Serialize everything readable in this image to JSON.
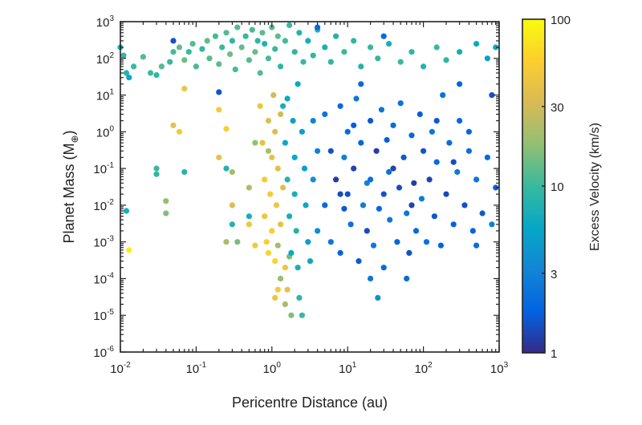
{
  "chart_data": {
    "type": "scatter",
    "xlabel": "Pericentre Distance (au)",
    "ylabel": {
      "main": "Planet Mass (M",
      "sub": "⊕",
      "close": ")"
    },
    "xscale": "log",
    "yscale": "log",
    "xlim": [
      0.01,
      1000
    ],
    "ylim": [
      1e-06,
      1000
    ],
    "grid": false,
    "x_tick_base": "10",
    "x_tick_exponents": [
      "-2",
      "-1",
      "0",
      "1",
      "2",
      "3"
    ],
    "y_tick_base": "10",
    "y_tick_exponents": [
      "3",
      "2",
      "1",
      "0",
      "-1",
      "-2",
      "-3",
      "-4",
      "-5",
      "-6"
    ],
    "colorbar": {
      "label": "Excess Velocity (km/s)",
      "scale": "log",
      "range": [
        1,
        100
      ],
      "colormap": "parula",
      "ticks": [
        "1",
        "3",
        "10",
        "30",
        "100"
      ],
      "tick_values": [
        1,
        3,
        10,
        30,
        100
      ],
      "colors": [
        "#352a87",
        "#0363e1",
        "#1485d4",
        "#06a7c6",
        "#38b99e",
        "#92bf73",
        "#d9ba56",
        "#fcce2e",
        "#f9fb0e"
      ]
    },
    "point_fields": [
      "pericentre_au",
      "mass_earth",
      "excess_velocity_kms"
    ],
    "points": [
      [
        0.011,
        120,
        9
      ],
      [
        0.012,
        40,
        8
      ],
      [
        0.015,
        60,
        10
      ],
      [
        0.02,
        110,
        12
      ],
      [
        0.025,
        40,
        10
      ],
      [
        0.03,
        35,
        9
      ],
      [
        0.035,
        60,
        12
      ],
      [
        0.045,
        80,
        10
      ],
      [
        0.05,
        150,
        11
      ],
      [
        0.06,
        200,
        13
      ],
      [
        0.07,
        90,
        14
      ],
      [
        0.08,
        150,
        10
      ],
      [
        0.09,
        250,
        12
      ],
      [
        0.1,
        60,
        11
      ],
      [
        0.12,
        180,
        9
      ],
      [
        0.14,
        300,
        13
      ],
      [
        0.15,
        100,
        12
      ],
      [
        0.18,
        400,
        11
      ],
      [
        0.2,
        70,
        13
      ],
      [
        0.22,
        200,
        10
      ],
      [
        0.25,
        500,
        12
      ],
      [
        0.28,
        130,
        14
      ],
      [
        0.3,
        300,
        9
      ],
      [
        0.33,
        50,
        11
      ],
      [
        0.35,
        700,
        12
      ],
      [
        0.4,
        200,
        13
      ],
      [
        0.45,
        400,
        10
      ],
      [
        0.5,
        90,
        12
      ],
      [
        0.55,
        600,
        11
      ],
      [
        0.6,
        150,
        14
      ],
      [
        0.65,
        300,
        9
      ],
      [
        0.7,
        40,
        12
      ],
      [
        0.75,
        500,
        13
      ],
      [
        0.8,
        250,
        8
      ],
      [
        0.9,
        100,
        11
      ],
      [
        1.0,
        700,
        12
      ],
      [
        1.1,
        180,
        10
      ],
      [
        1.2,
        400,
        13
      ],
      [
        1.3,
        60,
        9
      ],
      [
        1.5,
        300,
        11
      ],
      [
        1.7,
        800,
        10
      ],
      [
        2,
        150,
        9
      ],
      [
        2.3,
        500,
        8
      ],
      [
        2.6,
        80,
        10
      ],
      [
        3,
        300,
        7
      ],
      [
        3.5,
        120,
        9
      ],
      [
        4,
        600,
        8
      ],
      [
        5,
        200,
        7
      ],
      [
        6,
        80,
        9
      ],
      [
        7,
        400,
        8
      ],
      [
        9,
        150,
        10
      ],
      [
        12,
        300,
        9
      ],
      [
        15,
        60,
        8
      ],
      [
        20,
        200,
        10
      ],
      [
        25,
        100,
        9
      ],
      [
        35,
        250,
        7
      ],
      [
        50,
        80,
        10
      ],
      [
        70,
        150,
        9
      ],
      [
        100,
        60,
        8
      ],
      [
        150,
        200,
        10
      ],
      [
        200,
        90,
        9
      ],
      [
        300,
        150,
        7
      ],
      [
        500,
        250,
        6
      ],
      [
        700,
        100,
        5
      ],
      [
        900,
        200,
        6
      ],
      [
        0.01,
        200,
        7
      ],
      [
        0.013,
        30,
        6
      ],
      [
        0.05,
        300,
        1.5
      ],
      [
        0.2,
        12,
        1.5
      ],
      [
        4,
        700,
        2
      ],
      [
        30,
        400,
        2
      ],
      [
        0.7,
        5,
        45
      ],
      [
        0.75,
        0.5,
        40
      ],
      [
        0.8,
        0.05,
        50
      ],
      [
        0.8,
        0.005,
        45
      ],
      [
        0.85,
        0.001,
        55
      ],
      [
        0.9,
        0.0005,
        60
      ],
      [
        0.9,
        2,
        35
      ],
      [
        0.95,
        0.02,
        50
      ],
      [
        1.0,
        0.2,
        40
      ],
      [
        1.0,
        0.002,
        55
      ],
      [
        1.05,
        10,
        30
      ],
      [
        1.1,
        1,
        35
      ],
      [
        1.1,
        0.0003,
        60
      ],
      [
        1.15,
        0.01,
        45
      ],
      [
        1.2,
        0.1,
        38
      ],
      [
        1.2,
        5e-05,
        50
      ],
      [
        1.3,
        0.003,
        40
      ],
      [
        1.3,
        3,
        30
      ],
      [
        1.4,
        0.03,
        35
      ],
      [
        1.5,
        0.0002,
        45
      ],
      [
        0.2,
        4,
        50
      ],
      [
        0.25,
        1.2,
        55
      ],
      [
        0.05,
        1.5,
        40
      ],
      [
        0.06,
        1,
        50
      ],
      [
        0.013,
        0.0006,
        85
      ],
      [
        0.07,
        15,
        45
      ],
      [
        0.2,
        0.2,
        40
      ],
      [
        0.3,
        0.01,
        35
      ],
      [
        0.5,
        0.003,
        45
      ],
      [
        1.1,
        3e-05,
        45
      ],
      [
        1.6,
        5e-05,
        40
      ],
      [
        0.6,
        0.0008,
        50
      ],
      [
        0.3,
        0.08,
        20
      ],
      [
        0.5,
        0.03,
        22
      ],
      [
        0.6,
        0.5,
        18
      ],
      [
        0.9,
        0.3,
        22
      ],
      [
        1.2,
        0.0008,
        20
      ],
      [
        1.3,
        0.0001,
        18
      ],
      [
        1.5,
        2e-05,
        20
      ],
      [
        1.8,
        1e-05,
        16
      ],
      [
        0.04,
        0.006,
        16
      ],
      [
        0.04,
        0.013,
        18
      ],
      [
        0.35,
        0.001,
        15
      ],
      [
        0.25,
        0.001,
        22
      ],
      [
        1.7,
        0.0004,
        15
      ],
      [
        1.4,
        5,
        7
      ],
      [
        1.5,
        0.5,
        6
      ],
      [
        1.6,
        0.05,
        8
      ],
      [
        1.7,
        0.005,
        7
      ],
      [
        1.8,
        0.0005,
        6
      ],
      [
        1.9,
        2,
        5
      ],
      [
        2,
        0.2,
        6
      ],
      [
        2,
        0.02,
        7
      ],
      [
        2.1,
        0.002,
        8
      ],
      [
        2.2,
        0.0002,
        7
      ],
      [
        2.3,
        3e-05,
        9
      ],
      [
        2.5,
        1e-05,
        10
      ],
      [
        2.5,
        1,
        5
      ],
      [
        2.7,
        0.1,
        5
      ],
      [
        2.8,
        0.01,
        6
      ],
      [
        3,
        0.001,
        5
      ],
      [
        3.2,
        0.0003,
        6
      ],
      [
        1.6,
        8,
        6
      ],
      [
        2.2,
        20,
        6
      ],
      [
        0.03,
        0.1,
        10
      ],
      [
        0.03,
        0.07,
        9
      ],
      [
        0.07,
        0.08,
        8
      ],
      [
        0.012,
        0.007,
        7
      ],
      [
        0.25,
        0.1,
        8
      ],
      [
        0.3,
        0.003,
        8
      ],
      [
        0.5,
        0.005,
        7
      ],
      [
        5,
        3,
        2.5
      ],
      [
        5,
        0.01,
        2
      ],
      [
        6,
        0.3,
        1.5
      ],
      [
        6,
        0.001,
        2.5
      ],
      [
        7,
        0.05,
        1.2
      ],
      [
        8,
        5,
        2
      ],
      [
        8,
        0.0005,
        1.8
      ],
      [
        9,
        0.2,
        3
      ],
      [
        10,
        0.02,
        1.5
      ],
      [
        10,
        1,
        2
      ],
      [
        11,
        0.003,
        2.2
      ],
      [
        12,
        0.1,
        1.3
      ],
      [
        13,
        8,
        2.5
      ],
      [
        14,
        0.0003,
        1.6
      ],
      [
        15,
        0.5,
        1.8
      ],
      [
        16,
        0.01,
        2.8
      ],
      [
        18,
        0.002,
        1.4
      ],
      [
        20,
        2,
        1.6
      ],
      [
        20,
        0.05,
        2.2
      ],
      [
        22,
        0.0008,
        2.5
      ],
      [
        24,
        0.3,
        1.2
      ],
      [
        26,
        0.008,
        1.9
      ],
      [
        28,
        4,
        2.4
      ],
      [
        30,
        0.02,
        1.5
      ],
      [
        30,
        0.0002,
        2
      ],
      [
        33,
        0.6,
        1.7
      ],
      [
        36,
        0.004,
        2.6
      ],
      [
        40,
        0.1,
        1.3
      ],
      [
        40,
        1.5,
        2.1
      ],
      [
        45,
        0.001,
        1.8
      ],
      [
        48,
        0.03,
        1.4
      ],
      [
        50,
        6,
        2.2
      ],
      [
        55,
        0.2,
        1.6
      ],
      [
        60,
        0.006,
        2.4
      ],
      [
        65,
        0.0005,
        1.5
      ],
      [
        70,
        0.8,
        1.9
      ],
      [
        75,
        0.04,
        1.2
      ],
      [
        80,
        0.002,
        2
      ],
      [
        90,
        3,
        1.7
      ],
      [
        95,
        0.015,
        2.7
      ],
      [
        100,
        0.3,
        1.5
      ],
      [
        110,
        0.001,
        2.2
      ],
      [
        120,
        0.05,
        1.3
      ],
      [
        130,
        1,
        2.5
      ],
      [
        140,
        0.005,
        1.6
      ],
      [
        150,
        0.15,
        2
      ],
      [
        170,
        0.0008,
        1.8
      ],
      [
        180,
        10,
        2.3
      ],
      [
        200,
        0.02,
        1.4
      ],
      [
        220,
        0.5,
        2.1
      ],
      [
        250,
        0.003,
        1.7
      ],
      [
        280,
        0.08,
        2.6
      ],
      [
        300,
        2,
        1.9
      ],
      [
        350,
        0.01,
        1.5
      ],
      [
        400,
        0.3,
        2.2
      ],
      [
        450,
        0.002,
        1.8
      ],
      [
        500,
        0.05,
        2.4
      ],
      [
        600,
        0.006,
        1.6
      ],
      [
        700,
        0.2,
        2
      ],
      [
        800,
        0.003,
        2.8
      ],
      [
        900,
        0.03,
        1.7
      ],
      [
        25,
        3e-05,
        4
      ],
      [
        15,
        20,
        2
      ],
      [
        800,
        10,
        1.5
      ],
      [
        300,
        20,
        1.8
      ],
      [
        4,
        0.3,
        3
      ],
      [
        4,
        0.002,
        3.5
      ],
      [
        3.5,
        2,
        3
      ],
      [
        3.5,
        0.05,
        4
      ],
      [
        60,
        0.0001,
        2
      ],
      [
        20,
        0.0001,
        2.5
      ],
      [
        8,
        0.02,
        1.4
      ],
      [
        12,
        1.5,
        1.7
      ],
      [
        35,
        0.08,
        2.3
      ],
      [
        70,
        0.01,
        1.3
      ],
      [
        150,
        2,
        1.6
      ],
      [
        400,
        1,
        1.9
      ],
      [
        500,
        0.0008,
        2.1
      ],
      [
        250,
        0.15,
        1.4
      ],
      [
        18,
        0.04,
        2.9
      ],
      [
        9,
        0.008,
        1.6
      ]
    ]
  }
}
